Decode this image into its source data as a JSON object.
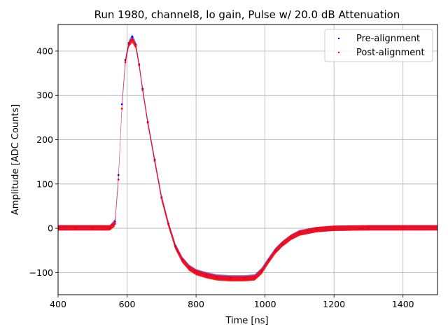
{
  "chart_data": {
    "type": "scatter",
    "title": "Run 1980, channel8, lo gain, Pulse w/ 20.0 dB Attenuation",
    "xlabel": "Time [ns]",
    "ylabel": "Amplitude [ADC Counts]",
    "xlim": [
      400,
      1500
    ],
    "ylim": [
      -150,
      460
    ],
    "xticks": [
      400,
      600,
      800,
      1000,
      1200,
      1400
    ],
    "yticks": [
      -100,
      0,
      100,
      200,
      300,
      400
    ],
    "grid": true,
    "legend_position": "top-right",
    "series": [
      {
        "name": "Pre-alignment",
        "color": "#0000ff",
        "marker": "point",
        "x": [
          400,
          450,
          500,
          550,
          565,
          575,
          585,
          595,
          605,
          615,
          625,
          635,
          645,
          660,
          680,
          700,
          720,
          740,
          760,
          780,
          800,
          830,
          860,
          900,
          940,
          970,
          990,
          1010,
          1030,
          1050,
          1075,
          1100,
          1150,
          1200,
          1300,
          1400,
          1500
        ],
        "values": [
          1,
          1,
          1,
          1,
          15,
          120,
          280,
          380,
          418,
          432,
          415,
          370,
          315,
          240,
          155,
          70,
          10,
          -40,
          -70,
          -88,
          -98,
          -105,
          -110,
          -112,
          -112,
          -110,
          -95,
          -72,
          -50,
          -35,
          -20,
          -10,
          -3,
          0,
          1,
          1,
          1
        ]
      },
      {
        "name": "Post-alignment",
        "color": "#ff0000",
        "marker": "point",
        "x": [
          400,
          450,
          500,
          550,
          565,
          575,
          585,
          595,
          605,
          615,
          625,
          635,
          645,
          660,
          680,
          700,
          720,
          740,
          760,
          780,
          800,
          830,
          860,
          900,
          940,
          970,
          990,
          1010,
          1030,
          1050,
          1075,
          1100,
          1150,
          1200,
          1300,
          1400,
          1500
        ],
        "values": [
          1,
          1,
          1,
          1,
          10,
          110,
          270,
          375,
          415,
          425,
          412,
          368,
          312,
          238,
          152,
          68,
          8,
          -42,
          -72,
          -90,
          -100,
          -107,
          -112,
          -114,
          -114,
          -112,
          -98,
          -74,
          -52,
          -36,
          -21,
          -11,
          -3,
          0,
          1,
          1,
          1
        ]
      }
    ],
    "noise_band": 6
  }
}
